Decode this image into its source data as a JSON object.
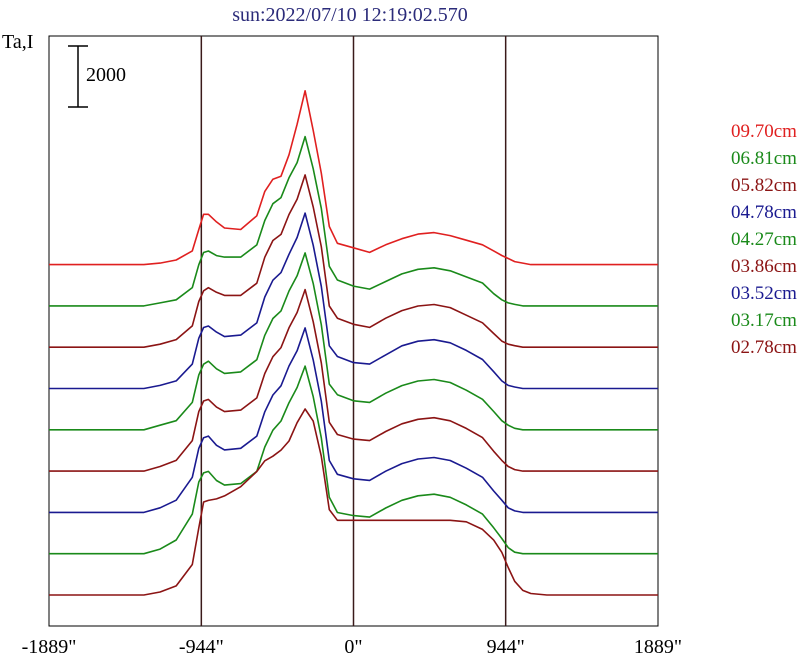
{
  "title": "sun:2022/07/10 12:19:02.570",
  "ylabel": "Ta,I",
  "scale_bar_label": "2000",
  "chart_data": {
    "type": "line",
    "title": "sun:2022/07/10 12:19:02.570",
    "ylabel": "Ta,I",
    "xlabel": "",
    "x_unit": "arcsec",
    "x_range": [
      -1889,
      1889
    ],
    "x_ticks": [
      {
        "value": -1889,
        "label": "-1889\""
      },
      {
        "value": -944,
        "label": "-944\""
      },
      {
        "value": 0,
        "label": "0\""
      },
      {
        "value": 944,
        "label": "944\""
      },
      {
        "value": 1889,
        "label": "1889\""
      }
    ],
    "vertical_lines": [
      -944,
      0,
      944
    ],
    "grid": false,
    "legend_position": "right",
    "scale_bar": 2000,
    "x": [
      -1889,
      -1400,
      -1300,
      -1200,
      -1100,
      -1000,
      -960,
      -930,
      -900,
      -850,
      -800,
      -700,
      -600,
      -550,
      -500,
      -450,
      -400,
      -350,
      -300,
      -250,
      -200,
      -150,
      -100,
      0,
      100,
      200,
      300,
      400,
      500,
      600,
      700,
      800,
      870,
      920,
      960,
      1000,
      1050,
      1100,
      1200,
      1300,
      1400,
      1889
    ],
    "series": [
      {
        "name": "09.70cm",
        "color": "#e02020",
        "offset": 8,
        "values": [
          0,
          0,
          0,
          50,
          150,
          450,
          1150,
          1650,
          1650,
          1400,
          1200,
          1150,
          1600,
          2400,
          2800,
          2900,
          3600,
          4600,
          5700,
          4400,
          3000,
          1250,
          700,
          550,
          400,
          650,
          850,
          1000,
          1050,
          950,
          800,
          650,
          450,
          300,
          200,
          100,
          50,
          0,
          0,
          0,
          0,
          0
        ]
      },
      {
        "name": "06.81cm",
        "color": "#1a8a1a",
        "offset": 7,
        "values": [
          0,
          0,
          0,
          100,
          200,
          600,
          1350,
          1750,
          1800,
          1650,
          1600,
          1600,
          2000,
          2800,
          3350,
          3550,
          4200,
          4700,
          5550,
          4500,
          3200,
          1300,
          850,
          650,
          550,
          800,
          1050,
          1200,
          1250,
          1150,
          950,
          750,
          400,
          200,
          100,
          50,
          0,
          0,
          0,
          0,
          0,
          0
        ]
      },
      {
        "name": "05.82cm",
        "color": "#8b1414",
        "offset": 6,
        "values": [
          0,
          0,
          0,
          100,
          250,
          700,
          1500,
          1850,
          1950,
          1800,
          1700,
          1700,
          2100,
          2950,
          3500,
          3700,
          4350,
          4850,
          5650,
          4600,
          3300,
          1350,
          950,
          750,
          650,
          950,
          1200,
          1350,
          1400,
          1300,
          1050,
          800,
          450,
          200,
          100,
          50,
          0,
          0,
          0,
          0,
          0,
          0
        ]
      },
      {
        "name": "04.78cm",
        "color": "#1a1a90",
        "offset": 5,
        "values": [
          0,
          0,
          0,
          100,
          250,
          800,
          1650,
          2000,
          2050,
          1850,
          1700,
          1750,
          2150,
          3000,
          3550,
          3800,
          4400,
          4950,
          5750,
          4700,
          3350,
          1400,
          1050,
          850,
          800,
          1100,
          1400,
          1550,
          1600,
          1500,
          1250,
          950,
          550,
          250,
          100,
          50,
          0,
          0,
          0,
          0,
          0,
          0
        ]
      },
      {
        "name": "04.27cm",
        "color": "#1a8a1a",
        "offset": 4,
        "values": [
          0,
          0,
          0,
          150,
          300,
          900,
          1800,
          2150,
          2250,
          2000,
          1850,
          1900,
          2300,
          3100,
          3650,
          3900,
          4550,
          5050,
          5800,
          4800,
          3450,
          1500,
          1150,
          950,
          900,
          1200,
          1450,
          1600,
          1650,
          1550,
          1300,
          1000,
          600,
          300,
          150,
          50,
          0,
          0,
          0,
          0,
          0,
          0
        ]
      },
      {
        "name": "03.86cm",
        "color": "#8b1414",
        "offset": 3,
        "values": [
          0,
          0,
          0,
          150,
          350,
          1000,
          1950,
          2300,
          2350,
          2100,
          1950,
          2000,
          2400,
          3200,
          3750,
          4050,
          4700,
          5200,
          5950,
          4900,
          3550,
          1600,
          1200,
          1050,
          1000,
          1300,
          1550,
          1700,
          1750,
          1650,
          1400,
          1100,
          650,
          350,
          150,
          50,
          0,
          0,
          0,
          0,
          0,
          0
        ]
      },
      {
        "name": "03.52cm",
        "color": "#1a1a90",
        "offset": 2,
        "values": [
          0,
          0,
          0,
          150,
          400,
          1150,
          2100,
          2450,
          2500,
          2200,
          2050,
          2100,
          2500,
          3300,
          3850,
          4150,
          4800,
          5300,
          6050,
          5000,
          3650,
          1700,
          1250,
          1100,
          1050,
          1350,
          1600,
          1750,
          1800,
          1700,
          1450,
          1150,
          700,
          400,
          150,
          50,
          0,
          0,
          0,
          0,
          0,
          0
        ]
      },
      {
        "name": "03.17cm",
        "color": "#1a8a1a",
        "offset": 1,
        "values": [
          0,
          0,
          0,
          150,
          450,
          1300,
          2350,
          2650,
          2700,
          2400,
          2250,
          2300,
          2700,
          3500,
          4050,
          4350,
          4950,
          5450,
          6150,
          5150,
          3800,
          1850,
          1350,
          1250,
          1200,
          1500,
          1750,
          1900,
          1950,
          1850,
          1600,
          1300,
          850,
          500,
          200,
          50,
          0,
          0,
          0,
          0,
          0,
          0
        ]
      },
      {
        "name": "02.78cm",
        "color": "#8b1414",
        "offset": 0,
        "values": [
          0,
          0,
          0,
          100,
          300,
          1000,
          2200,
          3050,
          3100,
          3150,
          3250,
          3550,
          4050,
          4400,
          4550,
          4750,
          5050,
          5650,
          6100,
          5700,
          4550,
          2800,
          2450,
          2450,
          2450,
          2450,
          2450,
          2450,
          2450,
          2450,
          2400,
          2150,
          1800,
          1400,
          900,
          450,
          150,
          50,
          0,
          0,
          0,
          0
        ]
      }
    ]
  }
}
